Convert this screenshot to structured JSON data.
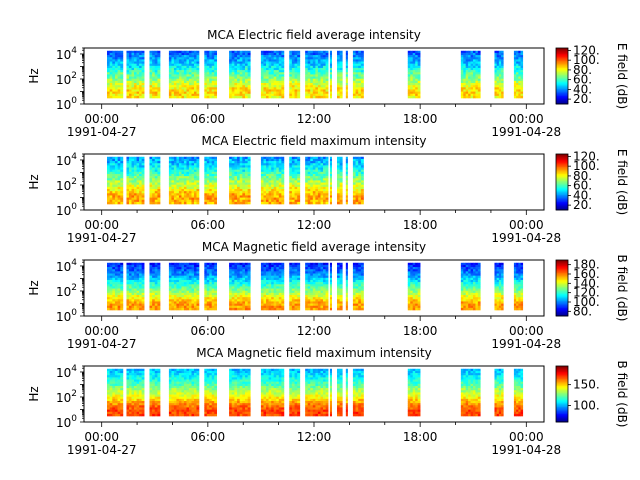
{
  "chart_data": [
    {
      "type": "heatmap",
      "title": "MCA  Electric field average intensity",
      "ylabel": "Hz",
      "yscale": "log",
      "ylim": [
        1,
        30000
      ],
      "yticks": [
        {
          "exp": "0",
          "value": 1
        },
        {
          "exp": "2",
          "value": 100
        },
        {
          "exp": "4",
          "value": 10000
        }
      ],
      "xlim_hours": [
        -1.0,
        25.0
      ],
      "xticks": [
        {
          "hour": 0,
          "label": "00:00"
        },
        {
          "hour": 6,
          "label": "06:00"
        },
        {
          "hour": 12,
          "label": "12:00"
        },
        {
          "hour": 18,
          "label": "18:00"
        },
        {
          "hour": 24,
          "label": "00:00"
        }
      ],
      "date_labels": [
        {
          "hour": 0,
          "label": "1991-04-27"
        },
        {
          "hour": 24,
          "label": "1991-04-28"
        }
      ],
      "colorbar": {
        "label": "E field (dB)",
        "range": [
          10,
          125
        ],
        "ticks": [
          {
            "value": 20,
            "label": "20."
          },
          {
            "value": 40,
            "label": "40."
          },
          {
            "value": 60,
            "label": "60."
          },
          {
            "value": 80,
            "label": "80."
          },
          {
            "value": 100,
            "label": "100."
          },
          {
            "value": 120,
            "label": "120."
          }
        ]
      },
      "colormap": "jet",
      "data_segments_hours": [
        [
          0.3,
          1.2
        ],
        [
          1.4,
          2.4
        ],
        [
          2.7,
          3.3
        ],
        [
          3.8,
          5.5
        ],
        [
          5.8,
          6.5
        ],
        [
          7.2,
          8.4
        ],
        [
          9.0,
          10.3
        ],
        [
          10.6,
          11.2
        ],
        [
          11.5,
          12.8
        ],
        [
          12.9,
          13.0
        ],
        [
          13.3,
          13.6
        ],
        [
          13.8,
          13.9
        ],
        [
          14.2,
          14.8
        ],
        [
          17.3,
          18.0
        ],
        [
          20.3,
          21.4
        ],
        [
          22.2,
          22.7
        ],
        [
          23.3,
          23.8
        ]
      ],
      "intensity_profile": {
        "base": 55,
        "peak_freq_log10": 0.9,
        "peak_gain": 30,
        "width": 0.9,
        "falloff": 12,
        "noise": 9
      }
    },
    {
      "type": "heatmap",
      "title": "MCA  Electric field maximum intensity",
      "ylabel": "Hz",
      "yscale": "log",
      "ylim": [
        1,
        30000
      ],
      "yticks": [
        {
          "exp": "0",
          "value": 1
        },
        {
          "exp": "2",
          "value": 100
        },
        {
          "exp": "4",
          "value": 10000
        }
      ],
      "xlim_hours": [
        -1.0,
        25.0
      ],
      "xticks": [
        {
          "hour": 0,
          "label": "00:00"
        },
        {
          "hour": 6,
          "label": "06:00"
        },
        {
          "hour": 12,
          "label": "12:00"
        },
        {
          "hour": 18,
          "label": "18:00"
        },
        {
          "hour": 24,
          "label": "00:00"
        }
      ],
      "date_labels": [
        {
          "hour": 0,
          "label": "1991-04-27"
        },
        {
          "hour": 24,
          "label": "1991-04-28"
        }
      ],
      "colorbar": {
        "label": "E field (dB)",
        "range": [
          10,
          125
        ],
        "ticks": [
          {
            "value": 20,
            "label": "20."
          },
          {
            "value": 40,
            "label": "40."
          },
          {
            "value": 60,
            "label": "60."
          },
          {
            "value": 80,
            "label": "80."
          },
          {
            "value": 100,
            "label": "100."
          },
          {
            "value": 120,
            "label": "120."
          }
        ]
      },
      "colormap": "jet",
      "data_segments_hours": [
        [
          0.3,
          1.2
        ],
        [
          1.4,
          2.4
        ],
        [
          2.7,
          3.3
        ],
        [
          3.8,
          5.5
        ],
        [
          5.8,
          6.5
        ],
        [
          7.2,
          8.4
        ],
        [
          9.0,
          10.3
        ],
        [
          10.6,
          11.2
        ],
        [
          11.5,
          12.8
        ],
        [
          12.9,
          13.0
        ],
        [
          13.3,
          13.6
        ],
        [
          13.8,
          13.9
        ],
        [
          14.2,
          14.8
        ]
      ],
      "intensity_profile": {
        "base": 62,
        "peak_freq_log10": 0.9,
        "peak_gain": 30,
        "width": 0.9,
        "falloff": 12,
        "noise": 9
      }
    },
    {
      "type": "heatmap",
      "title": "MCA  Magnetic field average intensity",
      "ylabel": "Hz",
      "yscale": "log",
      "ylim": [
        1,
        30000
      ],
      "yticks": [
        {
          "exp": "0",
          "value": 1
        },
        {
          "exp": "2",
          "value": 100
        },
        {
          "exp": "4",
          "value": 10000
        }
      ],
      "xlim_hours": [
        -1.0,
        25.0
      ],
      "xticks": [
        {
          "hour": 0,
          "label": "00:00"
        },
        {
          "hour": 6,
          "label": "06:00"
        },
        {
          "hour": 12,
          "label": "12:00"
        },
        {
          "hour": 18,
          "label": "18:00"
        },
        {
          "hour": 24,
          "label": "00:00"
        }
      ],
      "date_labels": [
        {
          "hour": 0,
          "label": "1991-04-27"
        },
        {
          "hour": 24,
          "label": "1991-04-28"
        }
      ],
      "colorbar": {
        "label": "B field (dB)",
        "range": [
          70,
          190
        ],
        "ticks": [
          {
            "value": 80,
            "label": "80."
          },
          {
            "value": 100,
            "label": "100."
          },
          {
            "value": 120,
            "label": "120."
          },
          {
            "value": 140,
            "label": "140."
          },
          {
            "value": 160,
            "label": "160."
          },
          {
            "value": 180,
            "label": "180."
          }
        ]
      },
      "colormap": "jet",
      "data_segments_hours": [
        [
          0.3,
          1.2
        ],
        [
          1.4,
          2.4
        ],
        [
          2.7,
          3.3
        ],
        [
          3.8,
          5.5
        ],
        [
          5.8,
          6.5
        ],
        [
          7.2,
          8.4
        ],
        [
          9.0,
          10.3
        ],
        [
          10.6,
          11.2
        ],
        [
          11.5,
          12.8
        ],
        [
          12.9,
          13.0
        ],
        [
          13.3,
          13.6
        ],
        [
          13.8,
          13.9
        ],
        [
          14.2,
          14.8
        ],
        [
          17.3,
          18.0
        ],
        [
          20.3,
          21.4
        ],
        [
          22.2,
          22.7
        ],
        [
          23.3,
          23.8
        ]
      ],
      "intensity_profile": {
        "base": 112,
        "peak_freq_log10": 0.7,
        "peak_gain": 45,
        "width": 1.0,
        "falloff": 14,
        "noise": 8
      }
    },
    {
      "type": "heatmap",
      "title": "MCA  Magnetic field maximum intensity",
      "ylabel": "Hz",
      "yscale": "log",
      "ylim": [
        1,
        30000
      ],
      "yticks": [
        {
          "exp": "0",
          "value": 1
        },
        {
          "exp": "2",
          "value": 100
        },
        {
          "exp": "4",
          "value": 10000
        }
      ],
      "xlim_hours": [
        -1.0,
        25.0
      ],
      "xticks": [
        {
          "hour": 0,
          "label": "00:00"
        },
        {
          "hour": 6,
          "label": "06:00"
        },
        {
          "hour": 12,
          "label": "12:00"
        },
        {
          "hour": 18,
          "label": "18:00"
        },
        {
          "hour": 24,
          "label": "00:00"
        }
      ],
      "date_labels": [
        {
          "hour": 0,
          "label": "1991-04-27"
        },
        {
          "hour": 24,
          "label": "1991-04-28"
        }
      ],
      "colorbar": {
        "label": "B field (dB)",
        "range": [
          60,
          195
        ],
        "ticks": [
          {
            "value": 100,
            "label": "100."
          },
          {
            "value": 150,
            "label": "150."
          }
        ]
      },
      "colormap": "jet",
      "data_segments_hours": [
        [
          0.3,
          1.2
        ],
        [
          1.4,
          2.4
        ],
        [
          2.7,
          3.3
        ],
        [
          3.8,
          5.5
        ],
        [
          5.8,
          6.5
        ],
        [
          7.2,
          8.4
        ],
        [
          9.0,
          10.3
        ],
        [
          10.6,
          11.2
        ],
        [
          11.5,
          12.8
        ],
        [
          12.9,
          13.0
        ],
        [
          13.3,
          13.6
        ],
        [
          13.8,
          13.9
        ],
        [
          14.2,
          14.8
        ],
        [
          17.3,
          18.0
        ],
        [
          20.3,
          21.4
        ],
        [
          22.2,
          22.7
        ],
        [
          23.3,
          23.8
        ]
      ],
      "intensity_profile": {
        "base": 125,
        "peak_freq_log10": 0.7,
        "peak_gain": 45,
        "width": 1.0,
        "falloff": 14,
        "noise": 8
      }
    }
  ]
}
